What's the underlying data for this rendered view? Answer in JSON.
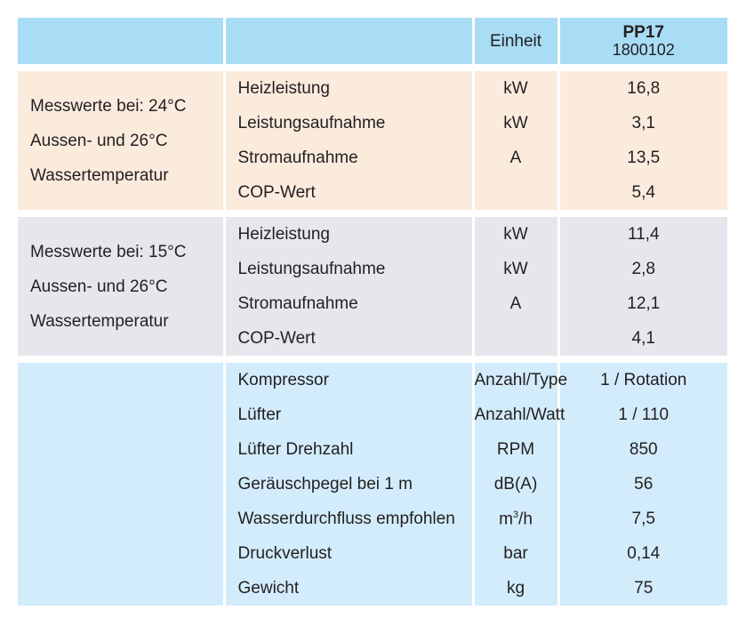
{
  "header": {
    "unit_label": "Einheit",
    "model_name": "PP17",
    "model_number": "1800102"
  },
  "group_a": {
    "side_lines": [
      "Messwerte bei: 24°C",
      "Aussen- und 26°C",
      "Wassertemperatur"
    ],
    "rows": [
      {
        "label": "Heizleistung",
        "unit": "kW",
        "value": "16,8"
      },
      {
        "label": "Leistungsaufnahme",
        "unit": "kW",
        "value": "3,1"
      },
      {
        "label": "Stromaufnahme",
        "unit": "A",
        "value": "13,5"
      },
      {
        "label": "COP-Wert",
        "unit": "",
        "value": "5,4"
      }
    ]
  },
  "group_b": {
    "side_lines": [
      "Messwerte bei: 15°C",
      "Aussen- und 26°C",
      "Wassertemperatur"
    ],
    "rows": [
      {
        "label": "Heizleistung",
        "unit": "kW",
        "value": "11,4"
      },
      {
        "label": "Leistungsaufnahme",
        "unit": "kW",
        "value": "2,8"
      },
      {
        "label": "Stromaufnahme",
        "unit": "A",
        "value": "12,1"
      },
      {
        "label": "COP-Wert",
        "unit": "",
        "value": "4,1"
      }
    ]
  },
  "group_c": {
    "rows": [
      {
        "label": "Kompressor",
        "unit": "Anzahl/Type",
        "value": "1 / Rotation"
      },
      {
        "label": "Lüfter",
        "unit": "Anzahl/Watt",
        "value": "1 / 110"
      },
      {
        "label": "Lüfter Drehzahl",
        "unit": "RPM",
        "value": "850"
      },
      {
        "label": "Geräuschpegel bei 1 m",
        "unit": "dB(A)",
        "value": "56"
      },
      {
        "label": "Wasserdurchfluss empfohlen",
        "unit_base": "m",
        "unit_sup": "3",
        "unit_tail": "/h",
        "value": "7,5"
      },
      {
        "label": "Druckverlust",
        "unit": "bar",
        "value": "0,14"
      },
      {
        "label": "Gewicht",
        "unit": "kg",
        "value": "75"
      }
    ]
  }
}
